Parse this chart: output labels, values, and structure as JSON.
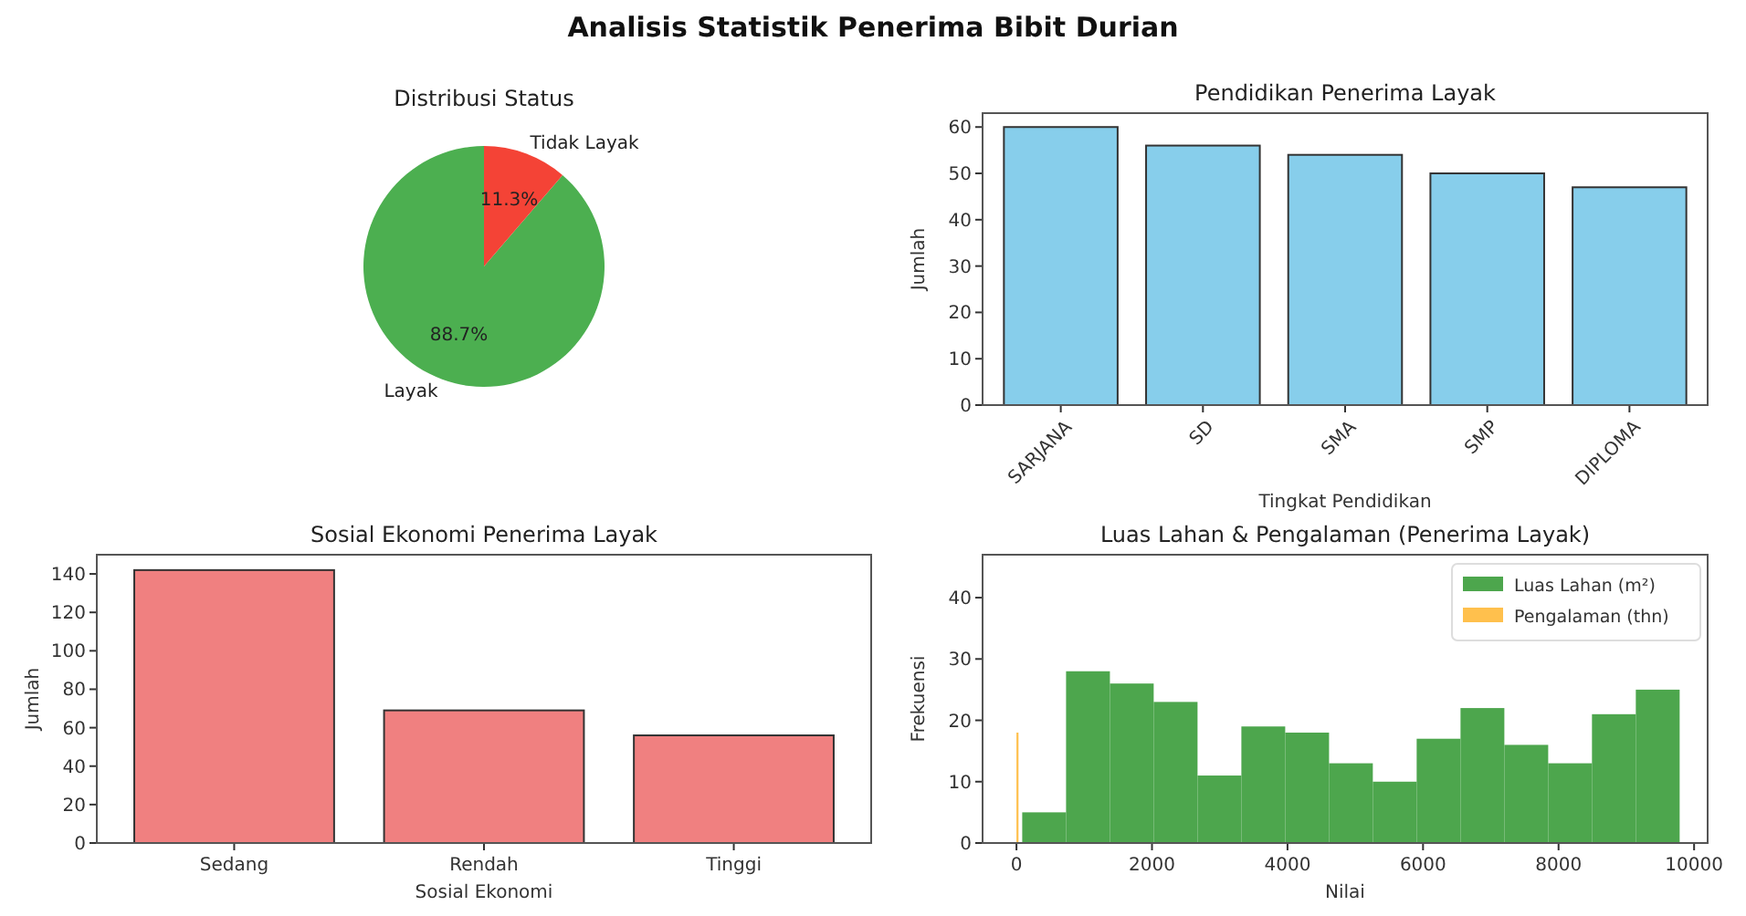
{
  "chart_data": [
    {
      "type": "other",
      "title": "Analisis Statistik Penerima Bibit Durian"
    },
    {
      "type": "pie",
      "title": "Distribusi Status",
      "categories": [
        "Layak",
        "Tidak Layak"
      ],
      "values": [
        88.7,
        11.3
      ],
      "colors": [
        "#4caf50",
        "#f44336"
      ],
      "value_labels": [
        "88.7%",
        "11.3%"
      ]
    },
    {
      "type": "bar",
      "title": "Pendidikan Penerima Layak",
      "xlabel": "Tingkat Pendidikan",
      "ylabel": "Jumlah",
      "categories": [
        "SARJANA",
        "SD",
        "SMA",
        "SMP",
        "DIPLOMA"
      ],
      "values": [
        60,
        56,
        54,
        50,
        47
      ],
      "color": "#87ceeb",
      "ylim": [
        0,
        63
      ],
      "yticks": [
        0,
        10,
        20,
        30,
        40,
        50,
        60
      ]
    },
    {
      "type": "bar",
      "title": "Sosial Ekonomi Penerima Layak",
      "xlabel": "Sosial Ekonomi",
      "ylabel": "Jumlah",
      "categories": [
        "Sedang",
        "Rendah",
        "Tinggi"
      ],
      "values": [
        142,
        69,
        56
      ],
      "color": "#f08080",
      "ylim": [
        0,
        150
      ],
      "yticks": [
        0,
        20,
        40,
        60,
        80,
        100,
        120,
        140
      ]
    },
    {
      "type": "histogram",
      "title": "Luas Lahan & Pengalaman (Penerima Layak)",
      "xlabel": "Nilai",
      "ylabel": "Frekuensi",
      "legend": "top right",
      "xlim": [
        -500,
        10200
      ],
      "xticks": [
        0,
        2000,
        4000,
        6000,
        8000,
        10000
      ],
      "ylim": [
        0,
        47
      ],
      "yticks": [
        0,
        10,
        20,
        30,
        40
      ],
      "bins": [
        0,
        30,
        85,
        732,
        1379,
        2025,
        2672,
        3319,
        3966,
        4613,
        5259,
        5906,
        6553,
        7200,
        7847,
        8493,
        9140,
        9787
      ],
      "series": [
        {
          "name": "Luas Lahan (m²)",
          "color": "#4da64d",
          "values": [
            null,
            null,
            5,
            28,
            26,
            23,
            11,
            19,
            18,
            13,
            10,
            17,
            22,
            16,
            13,
            21,
            25
          ]
        },
        {
          "name": "Pengalaman (thn)",
          "color": "#ffc04d",
          "values": [
            18,
            null,
            null,
            null,
            null,
            null,
            null,
            null,
            null,
            null,
            null,
            null,
            null,
            null,
            null,
            null,
            null
          ]
        }
      ]
    }
  ]
}
